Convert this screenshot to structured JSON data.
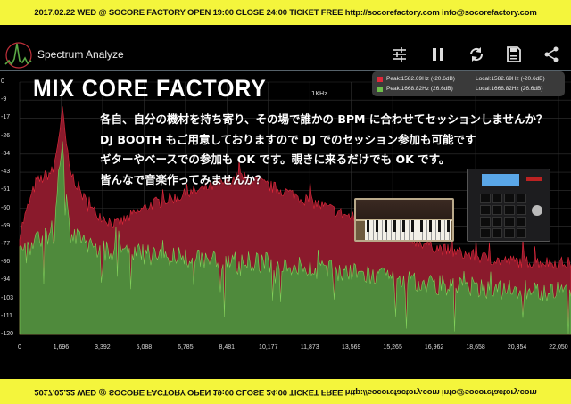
{
  "banner": {
    "text": "2017.02.22 WED @ SOCORE FACTORY  OPEN 19:00  CLOSE 24:00  TICKET FREE http://socorefactory.com  info@socorefactory.com",
    "bottom_text": "2017.02.22 WED @ SOCORE FACTORY  OPEN 19:00  CLOSE 24:00  TICKET FREE http://socorefactory.com  info@socorefactory.com",
    "color": "#f4f53c"
  },
  "app": {
    "title": "Spectrum Analyze",
    "toolbar": [
      "sliders-icon",
      "pause-icon",
      "refresh-icon",
      "save-icon",
      "share-icon"
    ]
  },
  "poster": {
    "title": "MIX CORE FACTORY",
    "lines": [
      "各自、自分の機材を持ち寄り、その場で誰かの BPM に合わせてセッションしませんか？",
      "DJ BOOTH もご用意しておりますので DJ でのセッション参加も可能です",
      "ギターやベースでの参加も OK です。覗きに来るだけでも OK です。",
      "皆んなで音楽作ってみませんか？"
    ]
  },
  "spectrum": {
    "unit_label": "1KHz",
    "y_ticks": [
      "0",
      "-9",
      "-17",
      "-26",
      "-34",
      "-43",
      "-51",
      "-60",
      "-69",
      "-77",
      "-86",
      "-94",
      "-103",
      "-111",
      "-120"
    ],
    "x_ticks": [
      "0",
      "1,696",
      "3,392",
      "5,088",
      "6,785",
      "8,481",
      "10,177",
      "11,873",
      "13,569",
      "15,265",
      "16,962",
      "18,658",
      "20,354",
      "22,050"
    ],
    "legend": [
      {
        "peak": "Peak:1582.69Hz (-20.6dB)",
        "local": "Local:1582.69Hz (-20.6dB)",
        "color": "#e0283a"
      },
      {
        "peak": "Peak:1668.82Hz (26.6dB)",
        "local": "Local:1668.82Hz (26.6dB)",
        "color": "#6ec04a"
      }
    ],
    "fill_colors": {
      "red": "#8a1a2c",
      "green": "#4f8a3c"
    }
  }
}
